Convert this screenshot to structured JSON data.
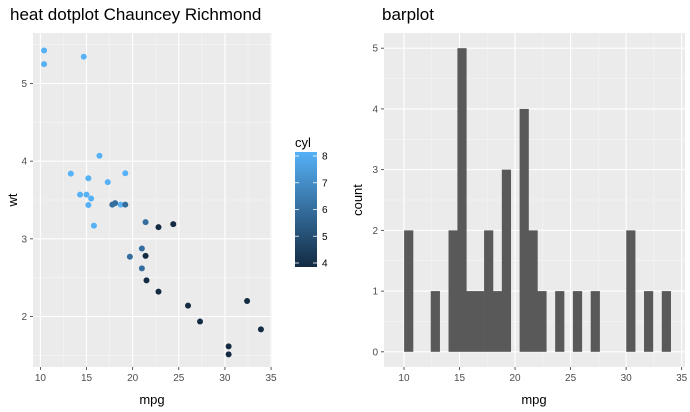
{
  "chart_data": [
    {
      "type": "scatter",
      "title": "heat dotplot Chauncey Richmond",
      "xlabel": "mpg",
      "ylabel": "wt",
      "xlim": [
        9.2,
        35.1
      ],
      "ylim": [
        1.35,
        5.65
      ],
      "xticks": [
        10,
        15,
        20,
        25,
        30,
        35
      ],
      "yticks": [
        2,
        3,
        4,
        5
      ],
      "grid": true,
      "legend": {
        "title": "cyl",
        "position": "right",
        "labels": [
          4,
          5,
          6,
          7,
          8
        ],
        "range": [
          4,
          8
        ],
        "color_low": "#132B43",
        "color_high": "#56B1F7"
      },
      "series": [
        {
          "x": [
            21.0,
            21.0,
            22.8,
            21.4,
            18.7,
            18.1,
            14.3,
            24.4,
            22.8,
            19.2,
            17.8,
            16.4,
            17.3,
            15.2,
            10.4,
            10.4,
            14.7,
            32.4,
            30.4,
            33.9,
            21.5,
            15.5,
            15.2,
            13.3,
            19.2,
            27.3,
            26.0,
            30.4,
            15.8,
            19.7,
            15.0,
            21.4
          ],
          "y": [
            2.62,
            2.875,
            2.32,
            3.215,
            3.44,
            3.46,
            3.57,
            3.19,
            3.15,
            3.44,
            3.44,
            4.07,
            3.73,
            3.78,
            5.25,
            5.424,
            5.345,
            2.2,
            1.615,
            1.835,
            2.465,
            3.52,
            3.435,
            3.84,
            3.845,
            1.935,
            2.14,
            1.513,
            3.17,
            2.77,
            3.57,
            2.78
          ],
          "cyl": [
            6,
            6,
            4,
            6,
            8,
            6,
            8,
            4,
            4,
            6,
            6,
            8,
            8,
            8,
            8,
            8,
            8,
            4,
            4,
            4,
            4,
            8,
            8,
            8,
            8,
            4,
            4,
            4,
            8,
            6,
            8,
            4
          ]
        }
      ]
    },
    {
      "type": "bar",
      "title": "barplot",
      "xlabel": "mpg",
      "ylabel": "count",
      "xlim": [
        8.2,
        35.3
      ],
      "ylim": [
        -0.25,
        5.25
      ],
      "xticks": [
        10,
        15,
        20,
        25,
        30,
        35
      ],
      "yticks": [
        0,
        1,
        2,
        3,
        4,
        5
      ],
      "grid": true,
      "bar_color": "#595959",
      "bins_start": 10.01,
      "bin_width": 0.8,
      "values": [
        2,
        0,
        0,
        1,
        0,
        2,
        5,
        1,
        1,
        2,
        1,
        3,
        0,
        4,
        2,
        1,
        0,
        1,
        0,
        1,
        0,
        1,
        0,
        0,
        0,
        2,
        0,
        1,
        0,
        1
      ]
    }
  ]
}
